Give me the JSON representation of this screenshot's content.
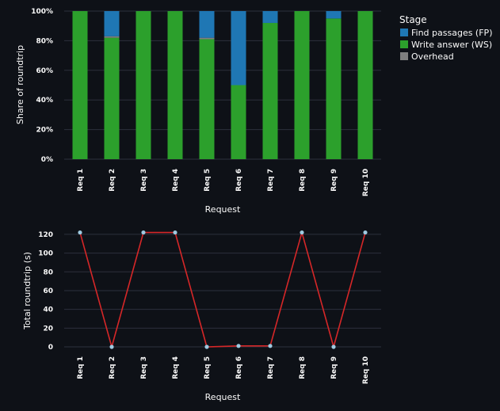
{
  "chart_data": [
    {
      "type": "bar",
      "stacked": true,
      "categories": [
        "Req 1",
        "Req 2",
        "Req 3",
        "Req 4",
        "Req 5",
        "Req 6",
        "Req 7",
        "Req 8",
        "Req 9",
        "Req 10"
      ],
      "series": [
        {
          "name": "Write answer (WS)",
          "color": "#2ca02c",
          "values": [
            100,
            82,
            100,
            100,
            81,
            50,
            92,
            100,
            95,
            100
          ]
        },
        {
          "name": "Overhead",
          "color": "#7f7f7f",
          "values": [
            0,
            1,
            0,
            0,
            1,
            0,
            0,
            0,
            0,
            0
          ]
        },
        {
          "name": "Find passages (FP)",
          "color": "#1f77b4",
          "values": [
            0,
            17,
            0,
            0,
            18,
            50,
            8,
            0,
            5,
            0
          ]
        }
      ],
      "legend_order": [
        "Find passages (FP)",
        "Write answer (WS)",
        "Overhead"
      ],
      "legend_title": "Stage",
      "legend_position": "right",
      "xlabel": "Request",
      "ylabel": "Share of roundtrip",
      "ylim": [
        0,
        100
      ],
      "yticks": [
        "0%",
        "20%",
        "40%",
        "60%",
        "80%",
        "100%"
      ],
      "grid": true
    },
    {
      "type": "line",
      "categories": [
        "Req 1",
        "Req 2",
        "Req 3",
        "Req 4",
        "Req 5",
        "Req 6",
        "Req 7",
        "Req 8",
        "Req 9",
        "Req 10"
      ],
      "values": [
        122,
        0,
        122,
        122,
        0,
        1,
        1,
        122,
        0,
        122
      ],
      "line_color": "#d62728",
      "point_color": "#9ecae1",
      "xlabel": "Request",
      "ylabel": "Total roundtrip (s)",
      "ylim": [
        0,
        125
      ],
      "yticks": [
        "0",
        "20",
        "40",
        "60",
        "80",
        "100",
        "120"
      ],
      "grid": true
    }
  ]
}
